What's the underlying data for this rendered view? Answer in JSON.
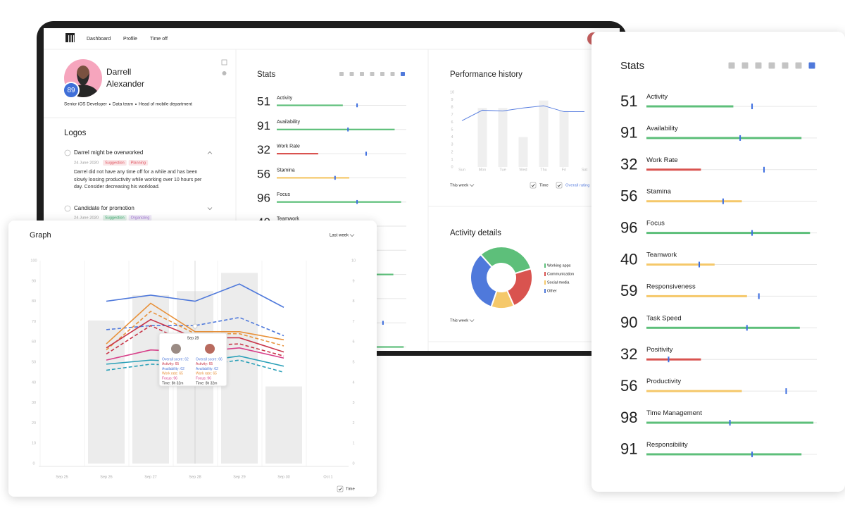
{
  "nav": {
    "items": [
      "Dashboard",
      "Profile",
      "Time off"
    ]
  },
  "profile": {
    "first_name": "Darrell",
    "last_name": "Alexander",
    "score": 89,
    "roles": [
      "Senior iOS Developer",
      "Data team",
      "Head of mobile department"
    ]
  },
  "logos": {
    "title": "Logos",
    "items": [
      {
        "title": "Darrel might be overworked",
        "date": "24 June 2020",
        "tags": [
          {
            "text": "Suggestion",
            "color": "#e0525e"
          },
          {
            "text": "Planning",
            "color": "#e0525e"
          }
        ],
        "body": "Darrel did not have any time off for a while and has been slowly loosing productivity while working over 10 hours per day. Consider decreasing his workload."
      },
      {
        "title": "Candidate for promotion",
        "date": "24 June 2020",
        "tags": [
          {
            "text": "Suggestion",
            "color": "#3aa86b"
          },
          {
            "text": "Organizing",
            "color": "#9b6fd0"
          }
        ]
      }
    ]
  },
  "stats": {
    "title": "Stats",
    "marker_color": "#3d6ee0",
    "rows": [
      {
        "label": "Activity",
        "value": 51,
        "marker": 62,
        "color": "#5dbf7a"
      },
      {
        "label": "Availability",
        "value": 91,
        "marker": 55,
        "color": "#5dbf7a"
      },
      {
        "label": "Work Rate",
        "value": 32,
        "marker": 69,
        "color": "#d9534f"
      },
      {
        "label": "Stamina",
        "value": 56,
        "marker": 45,
        "color": "#f5c86a"
      },
      {
        "label": "Focus",
        "value": 96,
        "marker": 62,
        "color": "#5dbf7a"
      },
      {
        "label": "Teamwork",
        "value": 40,
        "marker": 31,
        "color": "#f5c86a"
      },
      {
        "label": "Responsiveness",
        "value": 59,
        "marker": 66,
        "color": "#f5c86a"
      },
      {
        "label": "Task Speed",
        "value": 90,
        "marker": 59,
        "color": "#5dbf7a"
      },
      {
        "label": "Positivity",
        "value": 32,
        "marker": 13,
        "color": "#d9534f"
      },
      {
        "label": "Productivity",
        "value": 56,
        "marker": 82,
        "color": "#f5c86a"
      },
      {
        "label": "Time Management",
        "value": 98,
        "marker": 49,
        "color": "#5dbf7a"
      },
      {
        "label": "Responsibility",
        "value": 91,
        "marker": 62,
        "color": "#5dbf7a"
      }
    ]
  },
  "performance_history": {
    "type": "bar-line",
    "title": "Performance history",
    "categories": [
      "Sun",
      "Mon",
      "Tue",
      "Wed",
      "Thu",
      "Fri",
      "Sat"
    ],
    "bars": {
      "name": "Time",
      "color": "#efefef",
      "values": [
        null,
        7.9,
        7.9,
        4,
        8.9,
        7.5,
        null
      ]
    },
    "line": {
      "name": "Overall rating",
      "color": "#5a7fe0",
      "values": [
        6.2,
        7.6,
        7.5,
        7.9,
        8.2,
        7.4,
        7.4
      ]
    },
    "ylim": [
      0,
      10
    ],
    "yticks": [
      0,
      1,
      2,
      3,
      4,
      5,
      6,
      7,
      8,
      9,
      10
    ],
    "period": "This week"
  },
  "activity_details": {
    "type": "donut",
    "title": "Activity details",
    "categories": [
      "Working apps",
      "Communication",
      "Social media",
      "Other"
    ],
    "values": [
      32,
      23,
      12,
      33
    ],
    "colors": [
      "#5dbf7a",
      "#d9534f",
      "#f5c86a",
      "#4f79db"
    ],
    "period": "This week"
  },
  "graph": {
    "type": "bar-line",
    "title": "Graph",
    "period": "Last week",
    "categories": [
      "Sep 25",
      "Sep 26",
      "Sep 27",
      "Sep 28",
      "Sep 29",
      "Sep 30",
      "Oct 1"
    ],
    "ylim": [
      0,
      100
    ],
    "yticks": [
      0,
      10,
      20,
      30,
      40,
      50,
      60,
      70,
      80,
      90,
      100
    ],
    "y2lim": [
      0,
      10
    ],
    "y2ticks": [
      0,
      1,
      2,
      3,
      4,
      5,
      6,
      7,
      8,
      9,
      10
    ],
    "bars": {
      "name": "Time",
      "axis": "y2",
      "color": "#ececec",
      "values": [
        null,
        7.05,
        8.3,
        8.5,
        9.4,
        3.8,
        null
      ]
    },
    "series": [
      {
        "color": "#4f79db",
        "dashed": false,
        "values": [
          null,
          80,
          83,
          80,
          88.5,
          77,
          null
        ]
      },
      {
        "color": "#4f79db",
        "dashed": true,
        "values": [
          null,
          66,
          68,
          68,
          72,
          63,
          null
        ]
      },
      {
        "color": "#e8913a",
        "dashed": false,
        "values": [
          null,
          59,
          79,
          65,
          65,
          61,
          null
        ]
      },
      {
        "color": "#e8913a",
        "dashed": true,
        "values": [
          null,
          56,
          75,
          64,
          64,
          58,
          null
        ]
      },
      {
        "color": "#c9364a",
        "dashed": false,
        "values": [
          null,
          57,
          71,
          62,
          62,
          55,
          null
        ]
      },
      {
        "color": "#c9364a",
        "dashed": true,
        "values": [
          null,
          54,
          68,
          58,
          59,
          53,
          null
        ]
      },
      {
        "color": "#d8408a",
        "dashed": false,
        "values": [
          null,
          51,
          56,
          55,
          57,
          52,
          null
        ]
      },
      {
        "color": "#2aa0b8",
        "dashed": false,
        "values": [
          null,
          49,
          51,
          50,
          53,
          48,
          null
        ]
      },
      {
        "color": "#2aa0b8",
        "dashed": true,
        "values": [
          null,
          46,
          49,
          48,
          51,
          45,
          null
        ]
      }
    ],
    "tooltip": {
      "date": "Sep 28",
      "line_colors": [
        "#4f79db",
        "#c9364a",
        "#4f79db",
        "#e8913a",
        "#d8408a",
        "#333333"
      ],
      "columns": [
        [
          "Overall score: 62",
          "Activity: 65",
          "Availability: 62",
          "Work rate: 65",
          "Focus: 96",
          "Time: 8h 32m"
        ],
        [
          "Overall score: 66",
          "Activity: 65",
          "Availability: 62",
          "Work rate: 65",
          "Focus: 96",
          "Time: 8h 32m"
        ]
      ]
    }
  }
}
